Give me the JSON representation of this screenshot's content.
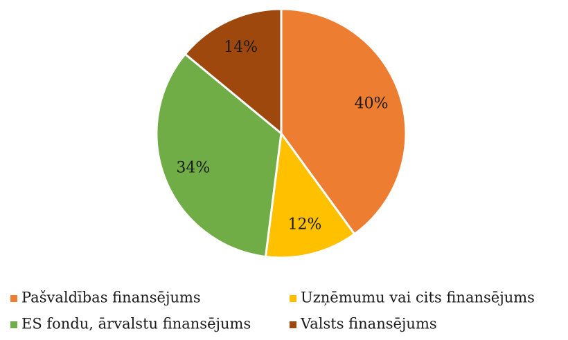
{
  "chart_data": {
    "type": "pie",
    "categories": [
      "Pašvaldības finansējums",
      "Uzņēmumu vai cits finansējums",
      "ES fondu, ārvalstu finansējums",
      "Valsts finansējums"
    ],
    "values": [
      40,
      12,
      34,
      14
    ],
    "value_labels": [
      "40%",
      "12%",
      "34%",
      "14%"
    ],
    "colors": [
      "#ED7D31",
      "#FFC000",
      "#70AD47",
      "#9E480E"
    ],
    "legend": "bottom"
  }
}
